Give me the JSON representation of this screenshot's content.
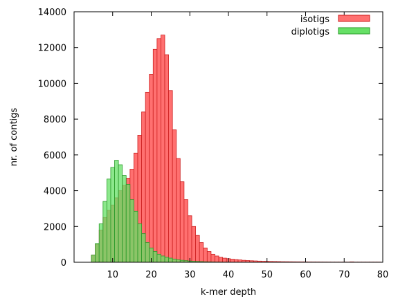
{
  "chart_data": {
    "type": "bar",
    "title": "",
    "xlabel": "k-mer depth",
    "ylabel": "nr. of contigs",
    "xlim": [
      0,
      80
    ],
    "ylim": [
      0,
      14000
    ],
    "bin_width": 1,
    "xticks": [
      10,
      20,
      30,
      40,
      50,
      60,
      70,
      80
    ],
    "yticks": [
      0,
      2000,
      4000,
      6000,
      8000,
      10000,
      12000,
      14000
    ],
    "grid": false,
    "legend_position": "top-right",
    "series": [
      {
        "name": "isotigs",
        "color": "#ff7070",
        "edge_color": "#cc2020",
        "x": [
          5,
          6,
          7,
          8,
          9,
          10,
          11,
          12,
          13,
          14,
          15,
          16,
          17,
          18,
          19,
          20,
          21,
          22,
          23,
          24,
          25,
          26,
          27,
          28,
          29,
          30,
          31,
          32,
          33,
          34,
          35,
          36,
          37,
          38,
          39,
          40,
          41,
          42,
          43,
          44,
          45,
          46,
          47,
          48,
          49,
          50,
          51,
          52,
          53,
          54,
          55,
          56,
          57,
          58,
          59,
          60,
          61,
          62,
          63,
          64,
          65,
          66,
          67,
          68,
          69,
          70,
          71,
          72,
          73,
          74,
          75,
          76,
          77,
          78,
          79
        ],
        "values": [
          400,
          1000,
          1800,
          2500,
          2900,
          3200,
          3600,
          4000,
          4300,
          4700,
          5200,
          6100,
          7100,
          8400,
          9500,
          10500,
          11900,
          12500,
          12700,
          11600,
          9600,
          7400,
          5800,
          4500,
          3500,
          2600,
          2000,
          1500,
          1100,
          800,
          600,
          450,
          350,
          280,
          230,
          200,
          170,
          150,
          130,
          110,
          95,
          85,
          75,
          65,
          55,
          50,
          45,
          40,
          35,
          30,
          28,
          26,
          24,
          22,
          20,
          18,
          16,
          15,
          14,
          13,
          12,
          11,
          10,
          10,
          10,
          10,
          10,
          20,
          10,
          10,
          10,
          10,
          10,
          10,
          10
        ]
      },
      {
        "name": "diplotigs",
        "color": "#66e066",
        "edge_color": "#2a9a2a",
        "x": [
          5,
          6,
          7,
          8,
          9,
          10,
          11,
          12,
          13,
          14,
          15,
          16,
          17,
          18,
          19,
          20,
          21,
          22,
          23,
          24,
          25,
          26,
          27,
          28,
          29,
          30,
          31,
          32,
          33,
          34,
          35,
          36,
          37,
          38,
          39,
          40
        ],
        "values": [
          400,
          1050,
          2150,
          3400,
          4650,
          5300,
          5700,
          5450,
          4850,
          4350,
          3500,
          2850,
          2150,
          1600,
          1100,
          800,
          600,
          450,
          350,
          280,
          230,
          180,
          140,
          110,
          90,
          70,
          55,
          45,
          35,
          25,
          20,
          15,
          10,
          8,
          6,
          5
        ]
      }
    ]
  }
}
